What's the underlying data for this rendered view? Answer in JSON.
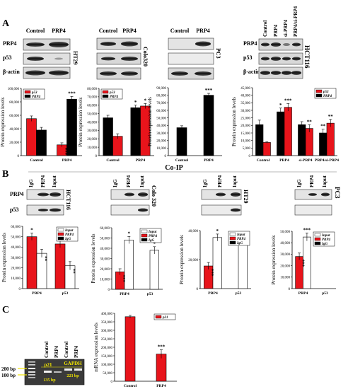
{
  "panels": {
    "A": {
      "label": "A",
      "blot_groups": [
        {
          "lanes": [
            "Control",
            "PRP4"
          ],
          "rows": [
            "PRP4",
            "p53",
            "β-actin"
          ],
          "cell_line": "HT29"
        },
        {
          "lanes": [
            "Control",
            "PRP4"
          ],
          "rows": [],
          "cell_line": "Colo320"
        },
        {
          "lanes": [
            "Control",
            "PRP4"
          ],
          "rows": [],
          "cell_line": "PC3"
        },
        {
          "lanes": [
            "Control",
            "PRP4",
            "si-PRP4",
            "PRP4/si-PRP4"
          ],
          "rows": [
            "PRP4",
            "p53",
            "β-actin"
          ],
          "cell_line": "HCT116"
        }
      ]
    },
    "coip_label": "Co-IP",
    "B": {
      "label": "B",
      "blot_groups": [
        {
          "lanes": [
            "IgG",
            "PRP4",
            "Input"
          ],
          "rows": [
            "PRP4",
            "p53"
          ],
          "cell_line": "HCT116"
        },
        {
          "lanes": [
            "IgG",
            "PRP4",
            "Input"
          ],
          "rows": [],
          "cell_line": "Colo 320"
        },
        {
          "lanes": [
            "IgG",
            "PRP4",
            "Input"
          ],
          "rows": [],
          "cell_line": "HT29"
        },
        {
          "lanes": [
            "IgG",
            "PRP4",
            "Input"
          ],
          "rows": [],
          "cell_line": "PC3"
        }
      ]
    },
    "C": {
      "label": "C",
      "gel": {
        "lanes": [
          "Control",
          "PRP4",
          "Control",
          "PRP4"
        ],
        "band_labels": [
          "p21",
          "GAPDH"
        ],
        "product_sizes": [
          "135 bp",
          "223 bp"
        ],
        "ladder_marks": [
          "200 bp",
          "100 bp"
        ]
      }
    }
  },
  "colors": {
    "red": "#e8141b",
    "black": "#000000",
    "white": "#ffffff"
  },
  "chart_data": [
    {
      "id": "A1",
      "type": "bar",
      "ylabel": "Protein expression levels",
      "categories": [
        "Control",
        "PRP4"
      ],
      "legend": [
        "p53",
        "PRP4"
      ],
      "legend_position": "top-left",
      "ylim": [
        0,
        100000
      ],
      "yticks": [
        "0",
        "20,000",
        "40,000",
        "60,000",
        "80,000",
        "100,000"
      ],
      "series": [
        {
          "name": "p53",
          "color": "red",
          "values": [
            55000,
            16000
          ],
          "err": [
            4000,
            3000
          ]
        },
        {
          "name": "PRP4",
          "color": "black",
          "values": [
            38000,
            84000
          ],
          "err": [
            4000,
            4000
          ]
        }
      ],
      "annotations": [
        {
          "cat": 1,
          "series": 1,
          "text": "***"
        },
        {
          "cat": 1,
          "series": 0,
          "text": "***",
          "vertical": true
        }
      ]
    },
    {
      "id": "A2",
      "type": "bar",
      "ylabel": "Protein expression levels",
      "categories": [
        "Control",
        "PRP4"
      ],
      "legend": [
        "p53",
        "PRP4"
      ],
      "legend_position": "top-left",
      "ylim": [
        0,
        80000
      ],
      "yticks": [
        "0",
        "10,000",
        "20,000",
        "30,000",
        "40,000",
        "50,000",
        "60,000",
        "70,000",
        "80,000"
      ],
      "series": [
        {
          "name": "PRP4",
          "color": "black",
          "values": [
            45000,
            57000
          ],
          "err": [
            3000,
            3000
          ]
        },
        {
          "name": "p53",
          "color": "red",
          "values": [
            23000,
            59000
          ],
          "err": [
            3000,
            3000
          ]
        }
      ],
      "annotations": [
        {
          "cat": 1,
          "series": 0,
          "text": "*"
        },
        {
          "cat": 1,
          "series": 1,
          "text": "*"
        }
      ]
    },
    {
      "id": "A3",
      "type": "bar",
      "ylabel": "Protein expression levels",
      "categories": [
        "Control",
        "PRP4"
      ],
      "legend": [],
      "ylim": [
        0,
        90000
      ],
      "yticks": [
        "0",
        "10,000",
        "20,000",
        "30,000",
        "40,000",
        "50,000",
        "60,000",
        "70,000",
        "80,000",
        "90,000"
      ],
      "series": [
        {
          "name": "PRP4",
          "color": "black",
          "values": [
            37000,
            80000
          ],
          "err": [
            2500,
            2500
          ]
        }
      ],
      "annotations": [
        {
          "cat": 1,
          "series": 0,
          "text": "***"
        }
      ]
    },
    {
      "id": "A4",
      "type": "bar",
      "ylabel": "Protein expression levels",
      "categories": [
        "Control",
        "PRP4",
        "si-PRP4",
        "PRP4/si-PRP4"
      ],
      "legend": [
        "p53",
        "PRP4"
      ],
      "legend_position": "top-right",
      "ylim": [
        0,
        45000
      ],
      "yticks": [
        "0",
        "5,000",
        "10,000",
        "15,000",
        "20,000",
        "25,000",
        "30,000",
        "35,000",
        "40,000",
        "45,000"
      ],
      "series": [
        {
          "name": "PRP4",
          "color": "black",
          "values": [
            20500,
            29000,
            20500,
            15000
          ],
          "err": [
            3000,
            2500,
            2000,
            2500
          ]
        },
        {
          "name": "p53",
          "color": "red",
          "values": [
            8700,
            32000,
            18000,
            21500
          ],
          "err": [
            500,
            2500,
            2500,
            2500
          ]
        }
      ],
      "annotations": [
        {
          "cat": 1,
          "series": 0,
          "text": "*"
        },
        {
          "cat": 1,
          "series": 1,
          "text": "***"
        },
        {
          "cat": 2,
          "series": 1,
          "text": "**"
        },
        {
          "cat": 3,
          "series": 0,
          "text": "**"
        },
        {
          "cat": 3,
          "series": 1,
          "text": "**"
        }
      ]
    },
    {
      "id": "B1",
      "type": "bar",
      "ylabel": "Protein expression levels",
      "categories": [
        "PRP4",
        "p53"
      ],
      "legend": [
        "Input",
        "PRP4",
        "IgG"
      ],
      "legend_position": "top-right",
      "ylim": [
        0,
        60000
      ],
      "yticks": [
        "0",
        "10,000",
        "20,000",
        "30,000",
        "40,000",
        "50,000",
        "60,000"
      ],
      "series": [
        {
          "name": "PRP4",
          "color": "red",
          "values": [
            50000,
            43000
          ],
          "err": [
            3500,
            3500
          ]
        },
        {
          "name": "Input",
          "color": "white",
          "values": [
            34000,
            22000
          ],
          "err": [
            4000,
            4000
          ]
        }
      ],
      "annotations": [
        {
          "cat": 0,
          "series": 0,
          "text": "*"
        },
        {
          "cat": 1,
          "series": 0,
          "text": "*"
        },
        {
          "cat": 0,
          "series": 1,
          "text": "**",
          "vertical": true
        },
        {
          "cat": 1,
          "series": 1,
          "text": "**",
          "vertical": true
        }
      ]
    },
    {
      "id": "B2",
      "type": "bar",
      "ylabel": "Protein expression levels",
      "categories": [
        "PRP4",
        "p53"
      ],
      "legend": [
        "Input",
        "PRP4",
        "IgG"
      ],
      "legend_position": "top-right",
      "ylim": [
        0,
        60000
      ],
      "yticks": [
        "0",
        "10,000",
        "20,000",
        "30,000",
        "40,000",
        "50,000",
        "60,000"
      ],
      "series": [
        {
          "name": "PRP4",
          "color": "red",
          "values": [
            17000,
            0
          ],
          "err": [
            3000,
            0
          ]
        },
        {
          "name": "Input",
          "color": "white",
          "values": [
            48000,
            38000
          ],
          "err": [
            3500,
            3500
          ]
        }
      ],
      "annotations": [
        {
          "cat": 0,
          "series": 0,
          "text": "***",
          "vertical": true
        },
        {
          "cat": 0,
          "series": 1,
          "text": "*"
        },
        {
          "cat": 1,
          "series": 1,
          "text": "*"
        }
      ]
    },
    {
      "id": "B3",
      "type": "bar",
      "ylabel": "Protein expression levels",
      "categories": [
        "PRP4",
        "p53"
      ],
      "legend": [
        "Input",
        "PRP4",
        "IgG"
      ],
      "legend_position": "top-right",
      "ylim": [
        0,
        50000
      ],
      "yticks": [
        "0",
        "20,000",
        "40,000"
      ],
      "series": [
        {
          "name": "PRP4",
          "color": "red",
          "values": [
            19500,
            0
          ],
          "err": [
            3000,
            0
          ]
        },
        {
          "name": "Input",
          "color": "white",
          "values": [
            44000,
            41000
          ],
          "err": [
            3000,
            3000
          ]
        }
      ],
      "annotations": [
        {
          "cat": 0,
          "series": 0,
          "text": "***",
          "vertical": true
        },
        {
          "cat": 0,
          "series": 1,
          "text": "*"
        },
        {
          "cat": 1,
          "series": 1,
          "text": "*"
        }
      ]
    },
    {
      "id": "B4",
      "type": "bar",
      "ylabel": "Protein expression levels",
      "categories": [
        "PRP4",
        "p53"
      ],
      "legend": [
        "Input",
        "PRP4",
        "IgG"
      ],
      "legend_position": "top-right",
      "ylim": [
        0,
        50000
      ],
      "yticks": [
        "0",
        "10,000",
        "20,000",
        "30,000",
        "40,000",
        "50,000"
      ],
      "series": [
        {
          "name": "PRP4",
          "color": "red",
          "values": [
            28000,
            0
          ],
          "err": [
            3000,
            0
          ]
        },
        {
          "name": "Input",
          "color": "white",
          "values": [
            45000,
            0
          ],
          "err": [
            3500,
            0
          ]
        }
      ],
      "annotations": [
        {
          "cat": 0,
          "series": 0,
          "text": "***",
          "vertical": true
        },
        {
          "cat": 0,
          "series": 1,
          "text": "***"
        }
      ]
    },
    {
      "id": "C1",
      "type": "bar",
      "ylabel": "mRNA expression levels",
      "categories": [
        "Control",
        "PRP4"
      ],
      "legend": [
        "p21"
      ],
      "legend_position": "top-right",
      "ylim": [
        0,
        400000
      ],
      "yticks": [
        "0",
        "50,000",
        "100,000",
        "150,000",
        "200,000",
        "250,000",
        "300,000",
        "350,000",
        "400,000"
      ],
      "series": [
        {
          "name": "p21",
          "color": "red",
          "values": [
            380000,
            160000
          ],
          "err": [
            8000,
            25000
          ]
        }
      ],
      "annotations": [
        {
          "cat": 1,
          "series": 0,
          "text": "***"
        }
      ]
    }
  ]
}
